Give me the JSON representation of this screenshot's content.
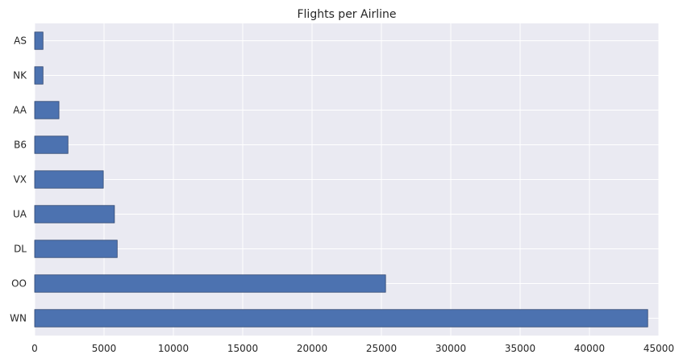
{
  "chart_data": {
    "type": "bar",
    "orientation": "horizontal",
    "title": "Flights per Airline",
    "xlabel": "",
    "ylabel": "",
    "categories": [
      "AS",
      "NK",
      "AA",
      "B6",
      "VX",
      "UA",
      "DL",
      "OO",
      "WN"
    ],
    "values": [
      600,
      600,
      1750,
      2400,
      4950,
      5750,
      5950,
      25300,
      44200
    ],
    "xlim": [
      0,
      45000
    ],
    "xticks": [
      "0",
      "5000",
      "10000",
      "15000",
      "20000",
      "25000",
      "30000",
      "35000",
      "40000",
      "45000"
    ],
    "grid": true,
    "legend": "none",
    "colors": {
      "bar": "#4c72b0",
      "bar_edge": "#2f4670",
      "plot_background": "#eaeaf2",
      "grid": "#ffffff",
      "text": "#262626"
    }
  }
}
